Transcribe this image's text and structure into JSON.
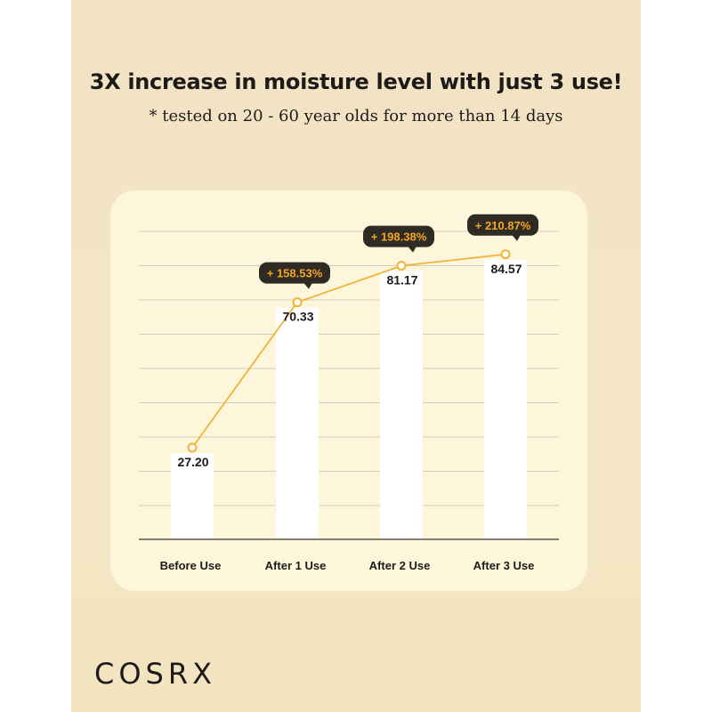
{
  "headline": "3X increase in moisture level with just 3 use!",
  "subheadline": "* tested on 20 - 60 year olds for more than 14 days",
  "brand": "COSRX",
  "colors": {
    "background": "#f3e4c3",
    "card": "#fdf6db",
    "bar": "#ffffff",
    "line": "#f0b43a",
    "callout_bg": "#2e2a24",
    "callout_text": "#f5a623",
    "text": "#1d1b19"
  },
  "chart_data": {
    "type": "bar",
    "categories": [
      "Before Use",
      "After 1 Use",
      "After 2 Use",
      "After 3 Use"
    ],
    "values": [
      27.2,
      70.33,
      81.17,
      84.57
    ],
    "value_labels": [
      "27.20",
      "70.33",
      "81.17",
      "84.57"
    ],
    "increase_labels": [
      "",
      "+ 158.53%",
      "+ 198.38%",
      "+ 210.87%"
    ],
    "overlay": "line",
    "ylim": [
      0,
      90
    ],
    "grid": true,
    "legend": "none",
    "title": "",
    "xlabel": "",
    "ylabel": ""
  }
}
